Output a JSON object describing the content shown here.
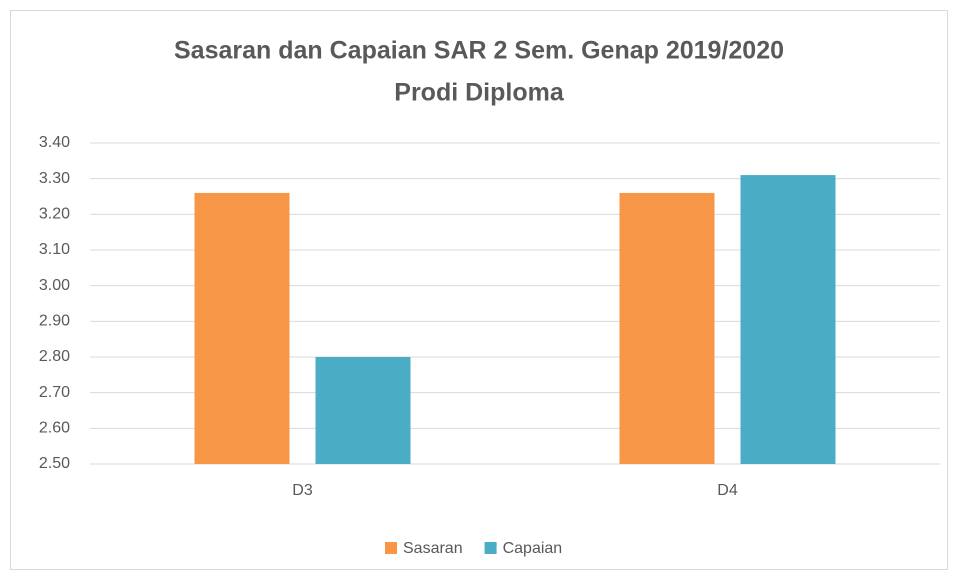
{
  "chart_data": {
    "type": "bar",
    "title": [
      "Sasaran dan Capaian SAR 2 Sem. Genap 2019/2020",
      "Prodi Diploma"
    ],
    "categories": [
      "D3",
      "D4"
    ],
    "series": [
      {
        "name": "Sasaran",
        "color": "#f79646",
        "values": [
          3.26,
          3.26
        ]
      },
      {
        "name": "Capaian",
        "color": "#4bacc6",
        "values": [
          2.8,
          3.31
        ]
      }
    ],
    "ylim": [
      2.5,
      3.4
    ],
    "yticks": [
      {
        "value": 2.5,
        "label": "2.50"
      },
      {
        "value": 2.6,
        "label": "2.60"
      },
      {
        "value": 2.7,
        "label": "2.70"
      },
      {
        "value": 2.8,
        "label": "2.80"
      },
      {
        "value": 2.9,
        "label": "2.90"
      },
      {
        "value": 3.0,
        "label": "3.00"
      },
      {
        "value": 3.1,
        "label": "3.10"
      },
      {
        "value": 3.2,
        "label": "3.20"
      },
      {
        "value": 3.3,
        "label": "3.30"
      },
      {
        "value": 3.4,
        "label": "3.40"
      }
    ],
    "grid": true,
    "legend": "bottom"
  }
}
